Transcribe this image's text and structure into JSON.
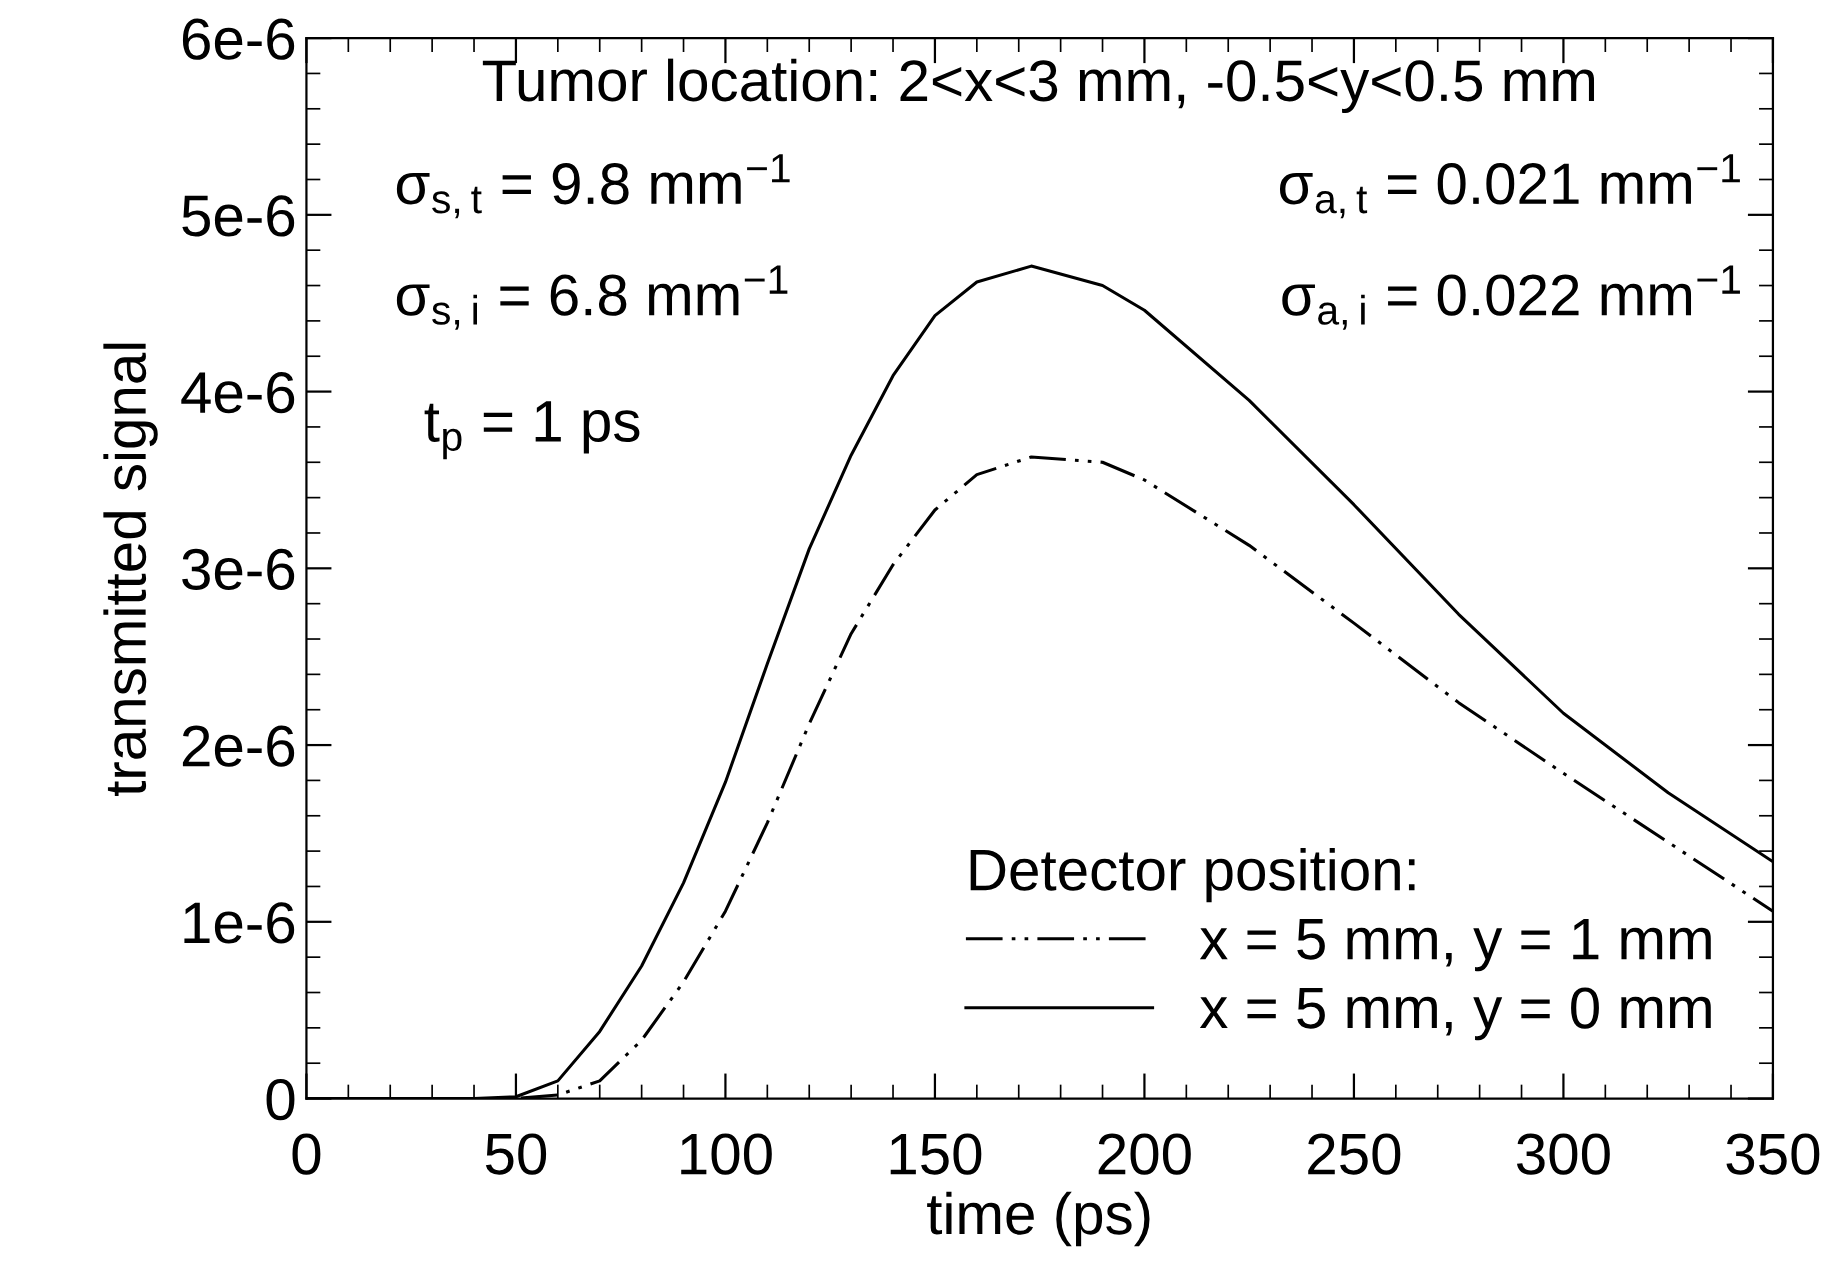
{
  "chart_data": {
    "type": "line",
    "xlabel": "time (ps)",
    "ylabel": "transmitted signal",
    "x": [
      0,
      25,
      40,
      50,
      60,
      70,
      80,
      90,
      100,
      110,
      120,
      130,
      140,
      150,
      160,
      173,
      190,
      200,
      225,
      250,
      275,
      300,
      325,
      350
    ],
    "series": [
      {
        "name": "x = 5 mm, y = 1 mm",
        "color": "#000000",
        "line_style": "dashdotdot",
        "values": [
          0,
          0,
          0,
          0,
          2e-08,
          1e-07,
          3.3e-07,
          6.6e-07,
          1.06e-06,
          1.56e-06,
          2.12e-06,
          2.63e-06,
          3.02e-06,
          3.33e-06,
          3.53e-06,
          3.63e-06,
          3.6e-06,
          3.5e-06,
          3.13e-06,
          2.69e-06,
          2.24e-06,
          1.84e-06,
          1.45e-06,
          1.06e-06
        ]
      },
      {
        "name": "x = 5 mm, y = 0 mm",
        "color": "#000000",
        "line_style": "solid",
        "values": [
          0,
          0,
          0,
          1e-08,
          1e-07,
          3.8e-07,
          7.5e-07,
          1.22e-06,
          1.79e-06,
          2.46e-06,
          3.11e-06,
          3.64e-06,
          4.09e-06,
          4.43e-06,
          4.62e-06,
          4.71e-06,
          4.6e-06,
          4.46e-06,
          3.95e-06,
          3.36e-06,
          2.74e-06,
          2.18e-06,
          1.73e-06,
          1.34e-06
        ]
      }
    ],
    "xlim": [
      0,
      350
    ],
    "xticks": [
      0,
      50,
      100,
      150,
      200,
      250,
      300,
      350
    ],
    "ylim": [
      0,
      6e-06
    ],
    "yticks": [
      0,
      {
        "value": 1e-06,
        "label": "1e-6"
      },
      {
        "value": 2e-06,
        "label": "2e-6"
      },
      {
        "value": 3e-06,
        "label": "3e-6"
      },
      {
        "value": 4e-06,
        "label": "4e-6"
      },
      {
        "value": 5e-06,
        "label": "5e-6"
      },
      {
        "value": 6e-06,
        "label": "6e-6"
      }
    ],
    "legend": "bottom right",
    "legend_title": "Detector position:",
    "grid": false,
    "annotations": [
      "Tumor location: 2<x<3 mm, -0.5<y<0.5 mm",
      "σ$_{s,t}$ = 9.8 mm$^{−1}$",
      "σ$_{a,t}$ = 0.021 mm$^{−1}$",
      "σ$_{s,i}$ = 6.8 mm$^{−1}$",
      "σ$_{a,i}$ = 0.022 mm$^{−1}$",
      "t$_{p}$ = 1 ps"
    ]
  }
}
